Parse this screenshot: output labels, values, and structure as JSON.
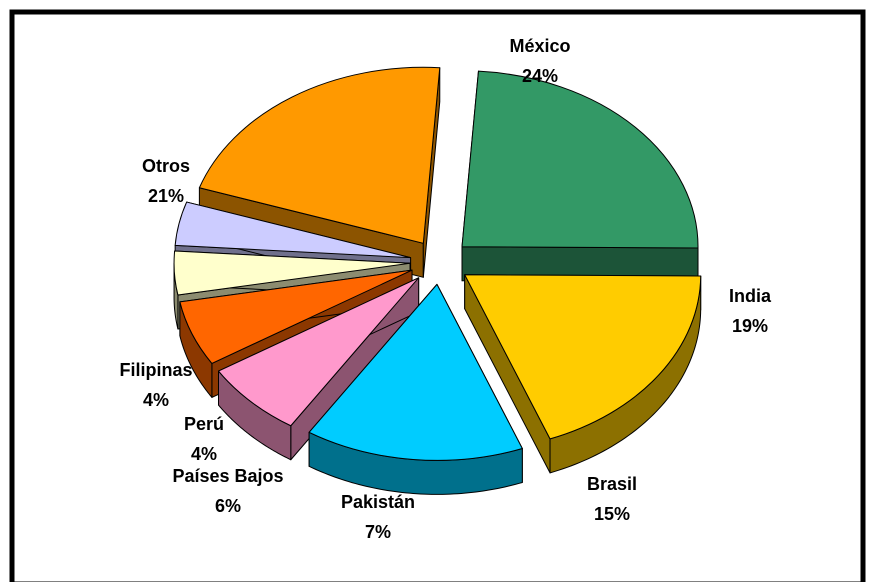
{
  "chart_data": {
    "type": "pie",
    "title": "",
    "three_d": true,
    "exploded": true,
    "categories": [
      "México",
      "India",
      "Brasil",
      "Pakistán",
      "Países Bajos",
      "Perú",
      "Filipinas",
      "Otros"
    ],
    "values": [
      24,
      19,
      15,
      7,
      6,
      4,
      4,
      21
    ],
    "value_labels": [
      "24%",
      "19%",
      "15%",
      "7%",
      "6%",
      "4%",
      "4%",
      "21%"
    ],
    "colors": [
      "#339966",
      "#FFCC00",
      "#00CCFF",
      "#FF99CC",
      "#FF6600",
      "#FFFFCC",
      "#CCCCFF",
      "#FF9900"
    ],
    "legend": "none"
  }
}
